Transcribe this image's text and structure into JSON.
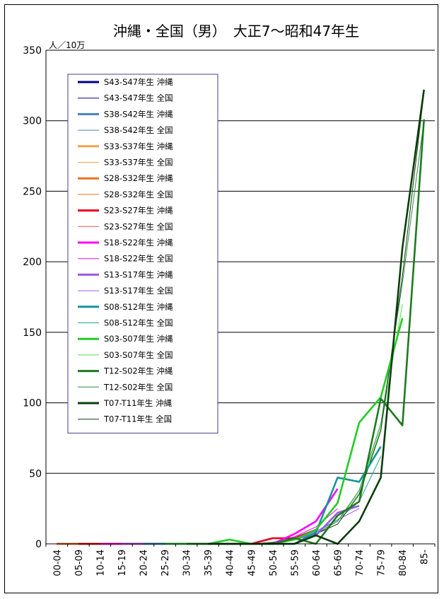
{
  "chart_data": {
    "type": "line",
    "title": "沖縄・全国（男）　大正7～昭和47年生",
    "unit_label": "人／10万",
    "ylim": [
      0,
      350
    ],
    "yticks": [
      0,
      50,
      100,
      150,
      200,
      250,
      300,
      350
    ],
    "grid": true,
    "legend_position": "top-left",
    "categories": [
      "00-04",
      "05-09",
      "10-14",
      "15-19",
      "20-24",
      "25-29",
      "30-34",
      "35-39",
      "40-44",
      "45-49",
      "50-54",
      "55-59",
      "60-64",
      "65-69",
      "70-74",
      "75-79",
      "80-84",
      "85-"
    ],
    "series": [
      {
        "name": "S43-S47年生 沖縄",
        "color": "#000080",
        "width": 3,
        "values": [
          0,
          0,
          0,
          null,
          null,
          null,
          null,
          null,
          null,
          null,
          null,
          null,
          null,
          null,
          null,
          null,
          null,
          null
        ]
      },
      {
        "name": "S43-S47年生 全国",
        "color": "#000080",
        "width": 1,
        "values": [
          0,
          0,
          0,
          null,
          null,
          null,
          null,
          null,
          null,
          null,
          null,
          null,
          null,
          null,
          null,
          null,
          null,
          null
        ]
      },
      {
        "name": "S38-S42年生 沖縄",
        "color": "#4a7fc1",
        "width": 3,
        "values": [
          0,
          0,
          0,
          0,
          null,
          null,
          null,
          null,
          null,
          null,
          null,
          null,
          null,
          null,
          null,
          null,
          null,
          null
        ]
      },
      {
        "name": "S38-S42年生 全国",
        "color": "#4a7fc1",
        "width": 1,
        "values": [
          0,
          0,
          0,
          0,
          null,
          null,
          null,
          null,
          null,
          null,
          null,
          null,
          null,
          null,
          null,
          null,
          null,
          null
        ]
      },
      {
        "name": "S33-S37年生 沖縄",
        "color": "#f4a24a",
        "width": 3,
        "values": [
          0,
          0,
          0,
          0,
          0,
          null,
          null,
          null,
          null,
          null,
          null,
          null,
          null,
          null,
          null,
          null,
          null,
          null
        ]
      },
      {
        "name": "S33-S37年生 全国",
        "color": "#f4a24a",
        "width": 1,
        "values": [
          0,
          0,
          0,
          0,
          0,
          null,
          null,
          null,
          null,
          null,
          null,
          null,
          null,
          null,
          null,
          null,
          null,
          null
        ]
      },
      {
        "name": "S28-S32年生 沖縄",
        "color": "#e8731e",
        "width": 3,
        "values": [
          0,
          0,
          0,
          0,
          0,
          0,
          null,
          null,
          null,
          null,
          null,
          null,
          null,
          null,
          null,
          null,
          null,
          null
        ]
      },
      {
        "name": "S28-S32年生 全国",
        "color": "#e8731e",
        "width": 1,
        "values": [
          0,
          0,
          0,
          0,
          0,
          0,
          null,
          null,
          null,
          null,
          null,
          null,
          null,
          null,
          null,
          null,
          null,
          null
        ]
      },
      {
        "name": "S23-S27年生 沖縄",
        "color": "#e8001c",
        "width": 3,
        "values": [
          null,
          0,
          0,
          0,
          0,
          0,
          0,
          0,
          0,
          0,
          4,
          4,
          10,
          null,
          null,
          null,
          null,
          null
        ]
      },
      {
        "name": "S23-S27年生 全国",
        "color": "#f05050",
        "width": 1,
        "values": [
          null,
          0,
          0,
          0,
          0,
          0,
          0,
          0,
          0,
          0,
          1,
          3,
          9,
          null,
          null,
          null,
          null,
          null
        ]
      },
      {
        "name": "S18-S22年生 沖縄",
        "color": "#ff00ff",
        "width": 3,
        "values": [
          null,
          null,
          0,
          0,
          0,
          0,
          0,
          0,
          0,
          0,
          0,
          7,
          16,
          39,
          null,
          null,
          null,
          null
        ]
      },
      {
        "name": "S18-S22年生 全国",
        "color": "#ff00ff",
        "width": 1,
        "values": [
          null,
          null,
          0,
          0,
          0,
          0,
          0,
          0,
          0,
          0,
          1,
          5,
          12,
          25,
          null,
          null,
          null,
          null
        ]
      },
      {
        "name": "S13-S17年生 沖縄",
        "color": "#9b59e0",
        "width": 3,
        "values": [
          null,
          null,
          null,
          0,
          0,
          0,
          0,
          0,
          0,
          0,
          0,
          4,
          6,
          22,
          27,
          null,
          null,
          null
        ]
      },
      {
        "name": "S13-S17年生 全国",
        "color": "#9b59e0",
        "width": 1,
        "values": [
          null,
          null,
          null,
          0,
          0,
          0,
          0,
          0,
          0,
          0,
          1,
          3,
          9,
          17,
          25,
          null,
          null,
          null
        ]
      },
      {
        "name": "S08-S12年生 沖縄",
        "color": "#13969a",
        "width": 3,
        "values": [
          null,
          null,
          null,
          null,
          0,
          0,
          0,
          0,
          0,
          0,
          0,
          0,
          8,
          47,
          44,
          69,
          null,
          null
        ]
      },
      {
        "name": "S08-S12年生 全国",
        "color": "#20a0a0",
        "width": 1,
        "values": [
          null,
          null,
          null,
          null,
          0,
          0,
          0,
          0,
          0,
          0,
          1,
          3,
          8,
          17,
          30,
          62,
          null,
          null
        ]
      },
      {
        "name": "S03-S07年生 沖縄",
        "color": "#22cc22",
        "width": 3,
        "values": [
          null,
          null,
          null,
          null,
          null,
          0,
          0,
          0,
          3,
          0,
          0,
          3,
          10,
          29,
          86,
          104,
          160,
          null
        ]
      },
      {
        "name": "S03-S07年生 全国",
        "color": "#55dd55",
        "width": 1,
        "values": [
          null,
          null,
          null,
          null,
          null,
          0,
          0,
          0,
          0,
          0,
          1,
          3,
          7,
          16,
          36,
          82,
          170,
          null
        ]
      },
      {
        "name": "T12-S02年生 沖縄",
        "color": "#1e7a1e",
        "width": 3,
        "values": [
          null,
          null,
          null,
          null,
          null,
          null,
          0,
          0,
          0,
          0,
          0,
          4,
          0,
          20,
          30,
          103,
          84,
          301
        ]
      },
      {
        "name": "T12-S02年生 全国",
        "color": "#2e8b3e",
        "width": 1,
        "values": [
          null,
          null,
          null,
          null,
          null,
          null,
          0,
          0,
          0,
          0,
          1,
          3,
          7,
          16,
          38,
          85,
          185,
          300
        ]
      },
      {
        "name": "T07-T11年生 沖縄",
        "color": "#0b3d0b",
        "width": 3,
        "values": [
          null,
          null,
          null,
          null,
          null,
          null,
          null,
          0,
          0,
          0,
          0,
          0,
          6,
          0,
          16,
          47,
          210,
          322
        ]
      },
      {
        "name": "T07-T11年生 全国",
        "color": "#0b3d0b",
        "width": 1,
        "values": [
          null,
          null,
          null,
          null,
          null,
          null,
          null,
          0,
          0,
          0,
          1,
          3,
          7,
          14,
          35,
          80,
          190,
          320
        ]
      }
    ]
  }
}
